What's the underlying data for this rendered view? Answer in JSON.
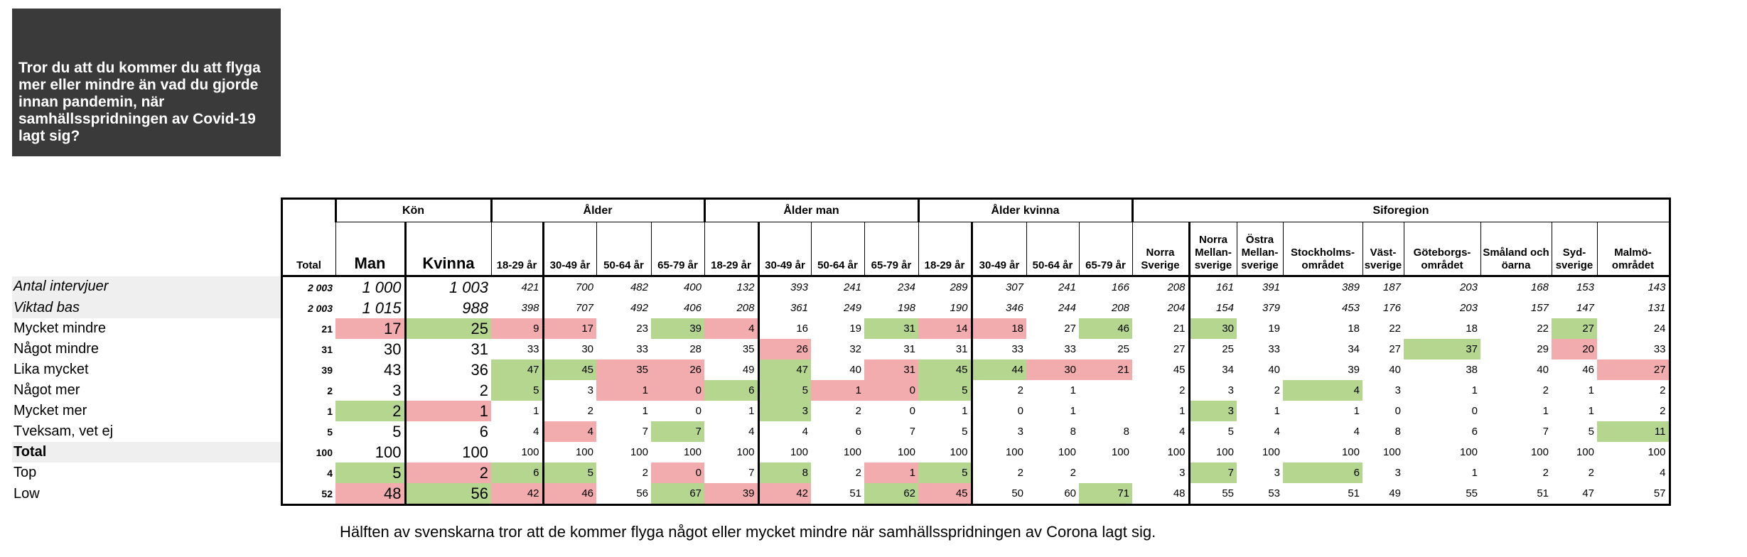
{
  "question": "Tror du att du kommer du att flyga mer eller mindre än vad du gjorde innan pandemin, när samhällsspridningen av Covid-19 lagt sig?",
  "groups": [
    {
      "label": "Kön",
      "span": 2
    },
    {
      "label": "Ålder",
      "span": 4
    },
    {
      "label": "Ålder man",
      "span": 4
    },
    {
      "label": "Ålder kvinna",
      "span": 4
    },
    {
      "label": "Siforegion",
      "span": 10
    }
  ],
  "columns": [
    "Total",
    "Man",
    "Kvinna",
    "18-29 år",
    "30-49 år",
    "50-64 år",
    "65-79 år",
    "18-29 år",
    "30-49 år",
    "50-64 år",
    "65-79 år",
    "18-29 år",
    "30-49 år",
    "50-64 år",
    "65-79 år",
    "Norra Sverige",
    "Norra Mellan-sverige",
    "Östra Mellan-sverige",
    "Stockholms-området",
    "Väst-sverige",
    "Göteborgs-området",
    "Småland och öarna",
    "Syd-sverige",
    "Malmö-området"
  ],
  "rows": [
    {
      "label": "Antal intervjuer",
      "style": "it",
      "values": [
        "2 003",
        "1 000",
        "1 003",
        "421",
        "700",
        "482",
        "400",
        "132",
        "393",
        "241",
        "234",
        "289",
        "307",
        "241",
        "166",
        "208",
        "161",
        "391",
        "389",
        "187",
        "203",
        "168",
        "153",
        "143"
      ],
      "colors": []
    },
    {
      "label": "Viktad bas",
      "style": "it",
      "values": [
        "2 003",
        "1 015",
        "988",
        "398",
        "707",
        "492",
        "406",
        "208",
        "361",
        "249",
        "198",
        "190",
        "346",
        "244",
        "208",
        "204",
        "154",
        "379",
        "453",
        "176",
        "203",
        "157",
        "147",
        "131"
      ],
      "colors": []
    },
    {
      "label": "Mycket mindre",
      "style": "",
      "values": [
        "21",
        "17",
        "25",
        "9",
        "17",
        "23",
        "39",
        "4",
        "16",
        "19",
        "31",
        "14",
        "18",
        "27",
        "46",
        "21",
        "30",
        "19",
        "18",
        "22",
        "18",
        "22",
        "27",
        "24"
      ],
      "colors": [
        "",
        "r",
        "g",
        "r",
        "r",
        "",
        "g",
        "r",
        "",
        "",
        "g",
        "r",
        "r",
        "",
        "g",
        "",
        "g",
        "",
        "",
        "",
        "",
        "",
        "g",
        ""
      ]
    },
    {
      "label": "Något mindre",
      "style": "",
      "values": [
        "31",
        "30",
        "31",
        "33",
        "30",
        "33",
        "28",
        "35",
        "26",
        "32",
        "31",
        "31",
        "33",
        "33",
        "25",
        "27",
        "25",
        "33",
        "34",
        "27",
        "37",
        "29",
        "20",
        "33"
      ],
      "colors": [
        "",
        "",
        "",
        "",
        "",
        "",
        "",
        "",
        "r",
        "",
        "",
        "",
        "",
        "",
        "",
        "",
        "",
        "",
        "",
        "",
        "g",
        "",
        "r",
        ""
      ]
    },
    {
      "label": "Lika mycket",
      "style": "",
      "values": [
        "39",
        "43",
        "36",
        "47",
        "45",
        "35",
        "26",
        "49",
        "47",
        "40",
        "31",
        "45",
        "44",
        "30",
        "21",
        "45",
        "34",
        "40",
        "39",
        "40",
        "38",
        "40",
        "46",
        "27"
      ],
      "colors": [
        "",
        "",
        "",
        "g",
        "g",
        "r",
        "r",
        "",
        "g",
        "",
        "r",
        "g",
        "g",
        "r",
        "r",
        "",
        "",
        "",
        "",
        "",
        "",
        "",
        "",
        "r"
      ]
    },
    {
      "label": "Något mer",
      "style": "",
      "values": [
        "2",
        "3",
        "2",
        "5",
        "3",
        "1",
        "0",
        "6",
        "5",
        "1",
        "0",
        "5",
        "2",
        "1",
        "",
        "2",
        "3",
        "2",
        "4",
        "3",
        "1",
        "2",
        "1",
        "2"
      ],
      "colors": [
        "",
        "",
        "",
        "g",
        "",
        "r",
        "r",
        "g",
        "g",
        "r",
        "r",
        "g",
        "",
        "",
        "",
        "",
        "",
        "",
        "g",
        "",
        "",
        "",
        "",
        ""
      ]
    },
    {
      "label": "Mycket mer",
      "style": "",
      "values": [
        "1",
        "2",
        "1",
        "1",
        "2",
        "1",
        "0",
        "1",
        "3",
        "2",
        "0",
        "1",
        "0",
        "1",
        "",
        "1",
        "3",
        "1",
        "1",
        "0",
        "0",
        "1",
        "1",
        "2"
      ],
      "colors": [
        "",
        "g",
        "r",
        "",
        "",
        "",
        "",
        "",
        "g",
        "",
        "",
        "",
        "",
        "",
        "",
        "",
        "g",
        "",
        "",
        "",
        "",
        "",
        "",
        ""
      ]
    },
    {
      "label": "Tveksam, vet ej",
      "style": "",
      "values": [
        "5",
        "5",
        "6",
        "4",
        "4",
        "7",
        "7",
        "4",
        "4",
        "6",
        "7",
        "5",
        "3",
        "8",
        "8",
        "4",
        "5",
        "4",
        "4",
        "8",
        "6",
        "7",
        "5",
        "11"
      ],
      "colors": [
        "",
        "",
        "",
        "",
        "r",
        "",
        "g",
        "",
        "",
        "",
        "",
        "",
        "",
        "",
        "",
        "",
        "",
        "",
        "",
        "",
        "",
        "",
        "",
        "g"
      ]
    },
    {
      "label": "Total",
      "style": "b",
      "values": [
        "100",
        "100",
        "100",
        "100",
        "100",
        "100",
        "100",
        "100",
        "100",
        "100",
        "100",
        "100",
        "100",
        "100",
        "100",
        "100",
        "100",
        "100",
        "100",
        "100",
        "100",
        "100",
        "100",
        "100"
      ],
      "colors": []
    },
    {
      "label": "Top",
      "style": "",
      "values": [
        "4",
        "5",
        "2",
        "6",
        "5",
        "2",
        "0",
        "7",
        "8",
        "2",
        "1",
        "5",
        "2",
        "2",
        "",
        "3",
        "7",
        "3",
        "6",
        "3",
        "1",
        "2",
        "2",
        "4"
      ],
      "colors": [
        "",
        "g",
        "r",
        "g",
        "g",
        "",
        "r",
        "",
        "g",
        "",
        "r",
        "g",
        "",
        "",
        "",
        "",
        "g",
        "",
        "g",
        "",
        "",
        "",
        "",
        ""
      ]
    },
    {
      "label": "Low",
      "style": "",
      "values": [
        "52",
        "48",
        "56",
        "42",
        "46",
        "56",
        "67",
        "39",
        "42",
        "51",
        "62",
        "45",
        "50",
        "60",
        "71",
        "48",
        "55",
        "53",
        "51",
        "49",
        "55",
        "51",
        "47",
        "57"
      ],
      "colors": [
        "",
        "r",
        "g",
        "r",
        "r",
        "",
        "g",
        "r",
        "r",
        "",
        "g",
        "r",
        "",
        "",
        "g",
        "",
        "",
        "",
        "",
        "",
        "",
        "",
        "",
        ""
      ]
    }
  ],
  "footnote": "Hälften av svenskarna tror att de kommer flyga något eller mycket mindre när samhällsspridningen av Corona lagt sig."
}
